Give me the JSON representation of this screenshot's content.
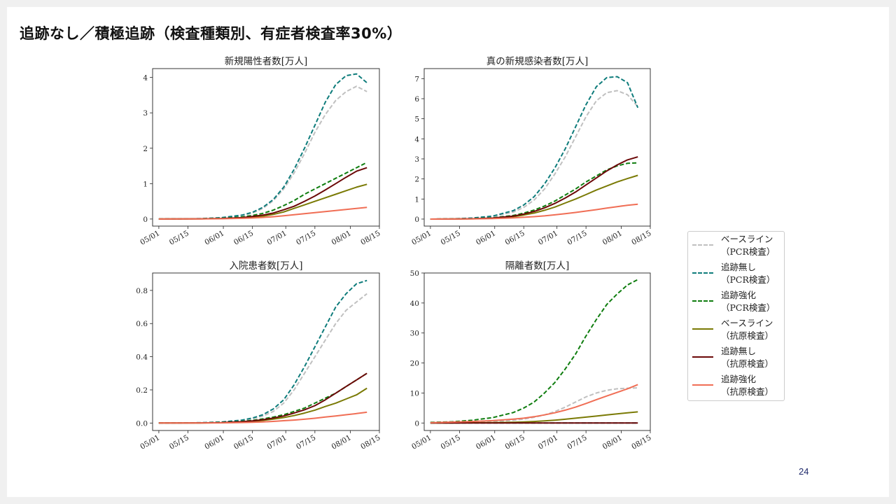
{
  "slide": {
    "title": "追跡なし／積極追跡（検査種類別、有症者検査率30%）",
    "page_number": "24"
  },
  "legend": [
    {
      "label_line1": "ベースライン",
      "label_line2": "（PCR検査）",
      "color": "#c0c0c0",
      "style": "dashed"
    },
    {
      "label_line1": "追跡無し",
      "label_line2": "（PCR検査）",
      "color": "#0e7c7b",
      "style": "dashed"
    },
    {
      "label_line1": "追跡強化",
      "label_line2": "（PCR検査）",
      "color": "#0f7d0f",
      "style": "dashed"
    },
    {
      "label_line1": "ベースライン",
      "label_line2": "（抗原検査）",
      "color": "#7a7a05",
      "style": "solid"
    },
    {
      "label_line1": "追跡無し",
      "label_line2": "（抗原検査）",
      "color": "#6b0707",
      "style": "solid"
    },
    {
      "label_line1": "追跡強化",
      "label_line2": "（抗原検査）",
      "color": "#f06e55",
      "style": "solid"
    }
  ],
  "chart_data": [
    {
      "type": "line",
      "title": "新規陽性者数[万人]",
      "x_ticks": [
        "05/01",
        "05/15",
        "06/01",
        "06/15",
        "07/01",
        "07/15",
        "08/01",
        "08/15"
      ],
      "x_tick_days": [
        0,
        14,
        31,
        45,
        61,
        75,
        92,
        106
      ],
      "x_range_days": [
        -3,
        106
      ],
      "ylim": [
        -0.2,
        4.25
      ],
      "y_ticks": [
        "0",
        "1",
        "2",
        "3",
        "4"
      ],
      "y_tick_values": [
        0,
        1,
        2,
        3,
        4
      ],
      "x_days": [
        0,
        10,
        20,
        30,
        40,
        45,
        50,
        55,
        60,
        65,
        70,
        75,
        80,
        85,
        90,
        95,
        100
      ],
      "series": [
        {
          "name": "ベースライン（PCR検査）",
          "values": [
            0,
            0.005,
            0.01,
            0.03,
            0.1,
            0.17,
            0.3,
            0.52,
            0.85,
            1.3,
            1.85,
            2.45,
            2.95,
            3.35,
            3.6,
            3.75,
            3.6
          ]
        },
        {
          "name": "追跡無し（PCR検査）",
          "values": [
            0,
            0.005,
            0.01,
            0.04,
            0.11,
            0.19,
            0.33,
            0.55,
            0.9,
            1.4,
            2.0,
            2.65,
            3.3,
            3.8,
            4.05,
            4.1,
            3.85
          ]
        },
        {
          "name": "追跡強化（PCR検査）",
          "values": [
            0,
            0.003,
            0.008,
            0.02,
            0.06,
            0.1,
            0.16,
            0.25,
            0.38,
            0.52,
            0.7,
            0.85,
            1.0,
            1.15,
            1.3,
            1.45,
            1.6
          ]
        },
        {
          "name": "ベースライン（抗原検査）",
          "values": [
            0,
            0.002,
            0.005,
            0.012,
            0.03,
            0.05,
            0.08,
            0.13,
            0.2,
            0.3,
            0.4,
            0.5,
            0.6,
            0.7,
            0.8,
            0.9,
            0.98
          ]
        },
        {
          "name": "追跡無し（抗原検査）",
          "values": [
            0,
            0.002,
            0.006,
            0.015,
            0.04,
            0.07,
            0.11,
            0.17,
            0.26,
            0.36,
            0.5,
            0.65,
            0.82,
            1.0,
            1.18,
            1.35,
            1.45
          ]
        },
        {
          "name": "追跡強化（抗原検査）",
          "values": [
            0,
            0.001,
            0.003,
            0.008,
            0.02,
            0.03,
            0.045,
            0.065,
            0.09,
            0.12,
            0.15,
            0.18,
            0.21,
            0.24,
            0.27,
            0.3,
            0.33
          ]
        }
      ]
    },
    {
      "type": "line",
      "title": "真の新規感染者数[万人]",
      "x_ticks": [
        "05/01",
        "05/15",
        "06/01",
        "06/15",
        "07/01",
        "07/15",
        "08/01",
        "08/15"
      ],
      "x_tick_days": [
        0,
        14,
        31,
        45,
        61,
        75,
        92,
        106
      ],
      "x_range_days": [
        -3,
        106
      ],
      "ylim": [
        -0.35,
        7.5
      ],
      "y_ticks": [
        "0",
        "1",
        "2",
        "3",
        "4",
        "5",
        "6",
        "7"
      ],
      "y_tick_values": [
        0,
        1,
        2,
        3,
        4,
        5,
        6,
        7
      ],
      "x_days": [
        0,
        10,
        20,
        30,
        40,
        45,
        50,
        55,
        60,
        65,
        70,
        75,
        80,
        85,
        90,
        95,
        100
      ],
      "series": [
        {
          "name": "ベースライン（PCR検査）",
          "values": [
            0,
            0.01,
            0.04,
            0.12,
            0.35,
            0.58,
            0.95,
            1.5,
            2.25,
            3.1,
            4.1,
            5.1,
            5.9,
            6.3,
            6.4,
            6.2,
            5.6
          ]
        },
        {
          "name": "追跡無し（PCR検査）",
          "values": [
            0,
            0.01,
            0.05,
            0.15,
            0.42,
            0.7,
            1.12,
            1.75,
            2.55,
            3.5,
            4.6,
            5.7,
            6.6,
            7.05,
            7.1,
            6.8,
            5.55
          ]
        },
        {
          "name": "追跡強化（PCR検査）",
          "values": [
            0,
            0.005,
            0.02,
            0.06,
            0.18,
            0.3,
            0.45,
            0.65,
            0.9,
            1.2,
            1.5,
            1.85,
            2.15,
            2.45,
            2.65,
            2.78,
            2.8
          ]
        },
        {
          "name": "ベースライン（抗原検査）",
          "values": [
            0,
            0.003,
            0.012,
            0.04,
            0.12,
            0.2,
            0.3,
            0.44,
            0.6,
            0.8,
            1.0,
            1.22,
            1.45,
            1.65,
            1.85,
            2.02,
            2.18
          ]
        },
        {
          "name": "追跡無し（抗原検査）",
          "values": [
            0,
            0.004,
            0.015,
            0.05,
            0.15,
            0.25,
            0.38,
            0.56,
            0.78,
            1.05,
            1.35,
            1.7,
            2.05,
            2.4,
            2.7,
            2.95,
            3.1
          ]
        },
        {
          "name": "追跡強化（抗原検査）",
          "values": [
            0,
            0.002,
            0.008,
            0.025,
            0.06,
            0.09,
            0.12,
            0.16,
            0.21,
            0.27,
            0.33,
            0.4,
            0.47,
            0.55,
            0.62,
            0.69,
            0.74
          ]
        }
      ]
    },
    {
      "type": "line",
      "title": "入院患者数[万人]",
      "x_ticks": [
        "05/01",
        "05/15",
        "06/01",
        "06/15",
        "07/01",
        "07/15",
        "08/01",
        "08/15"
      ],
      "x_tick_days": [
        0,
        14,
        31,
        45,
        61,
        75,
        92,
        106
      ],
      "x_range_days": [
        -3,
        106
      ],
      "ylim": [
        -0.045,
        0.905
      ],
      "y_ticks": [
        "0.0",
        "0.2",
        "0.4",
        "0.6",
        "0.8"
      ],
      "y_tick_values": [
        0,
        0.2,
        0.4,
        0.6,
        0.8
      ],
      "x_days": [
        0,
        10,
        20,
        30,
        40,
        45,
        50,
        55,
        60,
        65,
        70,
        75,
        80,
        85,
        90,
        95,
        100
      ],
      "series": [
        {
          "name": "ベースライン（PCR検査）",
          "values": [
            0,
            0.001,
            0.002,
            0.005,
            0.015,
            0.025,
            0.042,
            0.07,
            0.12,
            0.2,
            0.3,
            0.4,
            0.5,
            0.6,
            0.68,
            0.73,
            0.78
          ]
        },
        {
          "name": "追跡無し（PCR検査）",
          "values": [
            0,
            0.001,
            0.002,
            0.006,
            0.018,
            0.03,
            0.05,
            0.085,
            0.14,
            0.23,
            0.34,
            0.46,
            0.58,
            0.7,
            0.78,
            0.84,
            0.86
          ]
        },
        {
          "name": "追跡強化（PCR検査）",
          "values": [
            0,
            0.0005,
            0.001,
            0.003,
            0.01,
            0.016,
            0.025,
            0.036,
            0.05,
            0.07,
            0.09,
            0.12,
            0.15,
            0.18,
            0.22,
            0.26,
            0.3
          ]
        },
        {
          "name": "ベースライン（抗原検査）",
          "values": [
            0,
            0.0003,
            0.0008,
            0.002,
            0.006,
            0.01,
            0.016,
            0.024,
            0.033,
            0.045,
            0.06,
            0.078,
            0.1,
            0.12,
            0.145,
            0.17,
            0.21
          ]
        },
        {
          "name": "追跡無し（抗原検査）",
          "values": [
            0,
            0.0004,
            0.001,
            0.0025,
            0.008,
            0.013,
            0.02,
            0.03,
            0.043,
            0.06,
            0.08,
            0.105,
            0.14,
            0.18,
            0.22,
            0.26,
            0.3
          ]
        },
        {
          "name": "追跡強化（抗原検査）",
          "values": [
            0,
            0.0002,
            0.0005,
            0.0012,
            0.003,
            0.005,
            0.007,
            0.01,
            0.014,
            0.018,
            0.023,
            0.029,
            0.036,
            0.043,
            0.05,
            0.057,
            0.065
          ]
        }
      ]
    },
    {
      "type": "line",
      "title": "隔離者数[万人]",
      "x_ticks": [
        "05/01",
        "05/15",
        "06/01",
        "06/15",
        "07/01",
        "07/15",
        "08/01",
        "08/15"
      ],
      "x_tick_days": [
        0,
        14,
        31,
        45,
        61,
        75,
        92,
        106
      ],
      "x_range_days": [
        -3,
        106
      ],
      "ylim": [
        -2.5,
        50
      ],
      "y_ticks": [
        "0",
        "10",
        "20",
        "30",
        "40",
        "50"
      ],
      "y_tick_values": [
        0,
        10,
        20,
        30,
        40,
        50
      ],
      "x_days": [
        0,
        10,
        20,
        30,
        40,
        45,
        50,
        55,
        60,
        65,
        70,
        75,
        80,
        85,
        90,
        95,
        100
      ],
      "series": [
        {
          "name": "ベースライン（PCR検査）",
          "values": [
            0,
            0.1,
            0.2,
            0.4,
            0.9,
            1.3,
            1.9,
            2.7,
            3.8,
            5.3,
            7.0,
            8.7,
            10.0,
            10.9,
            11.4,
            11.6,
            11.7
          ]
        },
        {
          "name": "追跡無し（PCR検査）",
          "values": [
            0,
            0,
            0,
            0,
            0,
            0,
            0,
            0,
            0,
            0,
            0,
            0,
            0,
            0,
            0,
            0,
            0
          ]
        },
        {
          "name": "追跡強化（PCR検査）",
          "values": [
            0.2,
            0.4,
            0.9,
            1.8,
            3.5,
            5.0,
            7.0,
            10.0,
            13.5,
            18.0,
            23.0,
            29.0,
            34.5,
            39.5,
            43.0,
            46.0,
            47.8
          ]
        },
        {
          "name": "ベースライン（抗原検査）",
          "values": [
            0,
            0.03,
            0.07,
            0.13,
            0.25,
            0.35,
            0.5,
            0.7,
            0.95,
            1.25,
            1.6,
            1.95,
            2.3,
            2.7,
            3.05,
            3.4,
            3.7
          ]
        },
        {
          "name": "追跡無し（抗原検査）",
          "values": [
            0,
            0,
            0,
            0,
            0,
            0,
            0,
            0,
            0,
            0,
            0,
            0,
            0,
            0,
            0,
            0,
            0
          ]
        },
        {
          "name": "追跡強化（抗原検査）",
          "values": [
            0.1,
            0.3,
            0.5,
            0.8,
            1.3,
            1.6,
            2.1,
            2.7,
            3.4,
            4.3,
            5.3,
            6.5,
            7.8,
            9.0,
            10.2,
            11.4,
            12.8
          ]
        }
      ]
    }
  ]
}
